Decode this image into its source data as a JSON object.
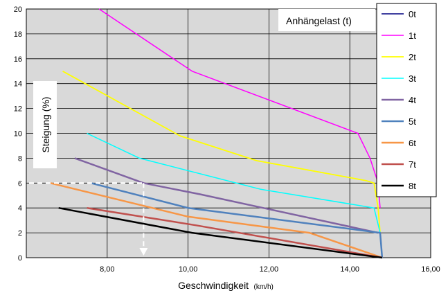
{
  "chart_data": {
    "type": "line",
    "legend_title": "Anhängelast (t)",
    "legend_position": "right",
    "xlabel": "Geschwindigkeit",
    "xlabel_unit": "(km/h)",
    "ylabel": "Steigung (%)",
    "xlim": [
      6.0,
      16.0
    ],
    "ylim": [
      0,
      20
    ],
    "x_ticks": [
      "8,00",
      "10,00",
      "12,00",
      "14,00",
      "16,00"
    ],
    "x_tick_values": [
      8,
      10,
      12,
      14,
      16
    ],
    "y_ticks": [
      "0",
      "2",
      "4",
      "6",
      "8",
      "10",
      "12",
      "14",
      "16",
      "18",
      "20"
    ],
    "y_tick_values": [
      0,
      2,
      4,
      6,
      8,
      10,
      12,
      14,
      16,
      18,
      20
    ],
    "grid": true,
    "plot_background": "#d9d9d9",
    "series": [
      {
        "name": "0t",
        "color": "#000080",
        "width": 1.5,
        "points": []
      },
      {
        "name": "1t",
        "color": "#ff00ff",
        "width": 1.5,
        "points": [
          [
            7.8,
            20
          ],
          [
            10.1,
            15.0
          ],
          [
            14.2,
            10.0
          ],
          [
            14.5,
            8.0
          ],
          [
            14.7,
            6.0
          ],
          [
            14.75,
            4.0
          ]
        ]
      },
      {
        "name": "2t",
        "color": "#ffff00",
        "width": 1.8,
        "points": [
          [
            6.9,
            15.0
          ],
          [
            9.8,
            9.8
          ],
          [
            11.7,
            7.8
          ],
          [
            14.4,
            6.2
          ],
          [
            14.6,
            6.0
          ],
          [
            14.7,
            4.0
          ],
          [
            14.75,
            2.0
          ],
          [
            14.8,
            0.0
          ]
        ]
      },
      {
        "name": "3t",
        "color": "#00ffff",
        "width": 1.5,
        "points": [
          [
            7.5,
            10.0
          ],
          [
            8.8,
            8.0
          ],
          [
            11.8,
            5.5
          ],
          [
            14.6,
            4.0
          ],
          [
            14.75,
            2.0
          ]
        ]
      },
      {
        "name": "4t",
        "color": "#8064a2",
        "width": 2.5,
        "points": [
          [
            7.2,
            8.0
          ],
          [
            8.9,
            6.0
          ],
          [
            10.3,
            5.1
          ],
          [
            14.7,
            2.0
          ]
        ]
      },
      {
        "name": "5t",
        "color": "#4f81bd",
        "width": 2.5,
        "points": [
          [
            7.6,
            6.0
          ],
          [
            10.0,
            4.0
          ],
          [
            14.75,
            2.0
          ],
          [
            14.8,
            0.0
          ]
        ]
      },
      {
        "name": "6t",
        "color": "#f79646",
        "width": 2.5,
        "points": [
          [
            6.6,
            6.0
          ],
          [
            10.0,
            3.3
          ],
          [
            13.0,
            2.0
          ],
          [
            14.8,
            0.0
          ]
        ]
      },
      {
        "name": "7t",
        "color": "#c0504d",
        "width": 2.5,
        "points": [
          [
            7.5,
            4.0
          ],
          [
            10.2,
            2.6
          ],
          [
            14.8,
            0.0
          ]
        ]
      },
      {
        "name": "8t",
        "color": "#000000",
        "width": 2.5,
        "points": [
          [
            6.8,
            4.0
          ],
          [
            10.1,
            2.0
          ],
          [
            14.8,
            0.0
          ]
        ]
      }
    ],
    "reference_marker": {
      "x": 8.9,
      "y": 6.0,
      "color": "#ffffff"
    }
  }
}
